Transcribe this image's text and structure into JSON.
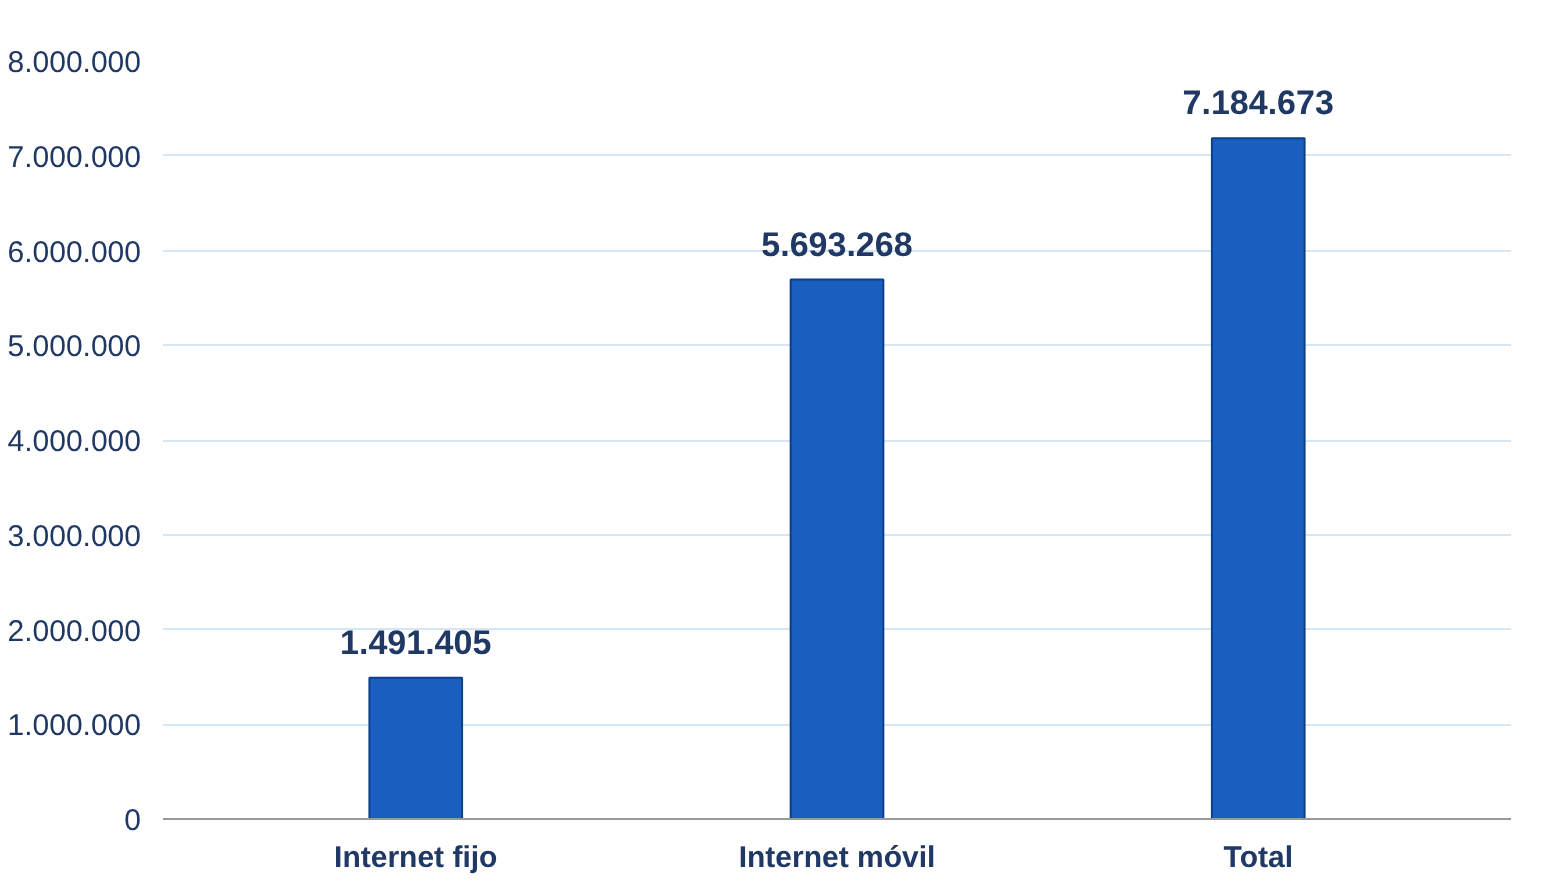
{
  "chart_data": {
    "type": "bar",
    "categories": [
      "Internet fijo",
      "Internet móvil",
      "Total"
    ],
    "values": [
      1491405,
      5693268,
      7184673
    ],
    "value_labels": [
      "1.491.405",
      "5.693.268",
      "7.184.673"
    ],
    "color": "#1a5fc0",
    "ylim": [
      0,
      8000000
    ],
    "yticks": [
      {
        "value": 0,
        "label": "0"
      },
      {
        "value": 1000000,
        "label": "1.000.000"
      },
      {
        "value": 2000000,
        "label": "2.000.000"
      },
      {
        "value": 3000000,
        "label": "3.000.000"
      },
      {
        "value": 4000000,
        "label": "4.000.000"
      },
      {
        "value": 5000000,
        "label": "5.000.000"
      },
      {
        "value": 6000000,
        "label": "6.000.000"
      },
      {
        "value": 7000000,
        "label": "7.000.000"
      },
      {
        "value": 8000000,
        "label": "8.000.000"
      }
    ],
    "grid": "y"
  }
}
